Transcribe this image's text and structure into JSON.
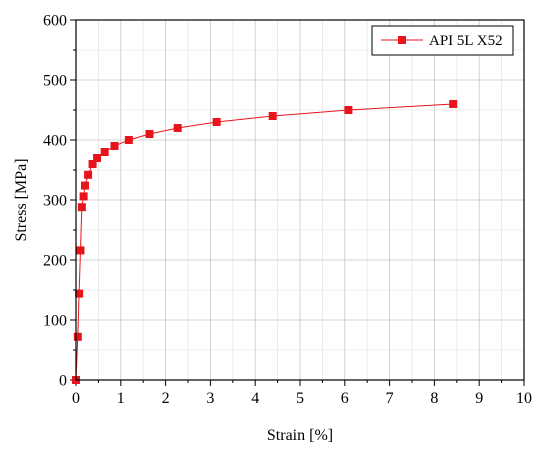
{
  "chart_data": {
    "type": "line",
    "xlabel": "Strain [%]",
    "ylabel": "Stress [MPa]",
    "xlim": [
      0,
      10
    ],
    "ylim": [
      0,
      600
    ],
    "xticks": [
      "0",
      "1",
      "2",
      "3",
      "4",
      "5",
      "6",
      "7",
      "8",
      "9",
      "10"
    ],
    "yticks": [
      "0",
      "100",
      "200",
      "300",
      "400",
      "500",
      "600"
    ],
    "grid": true,
    "legend_position": "top-right",
    "marker": "square",
    "series": [
      {
        "name": "API 5L X52",
        "color": "#e8141b",
        "x": [
          0.0,
          0.04,
          0.07,
          0.1,
          0.13,
          0.17,
          0.2,
          0.27,
          0.37,
          0.47,
          0.64,
          0.86,
          1.18,
          1.64,
          2.27,
          3.14,
          4.39,
          6.08,
          8.42
        ],
        "y": [
          0,
          72,
          144,
          216,
          288,
          306,
          324,
          342,
          360,
          370,
          380,
          390,
          400,
          410,
          420,
          430,
          440,
          450,
          460
        ]
      }
    ]
  }
}
